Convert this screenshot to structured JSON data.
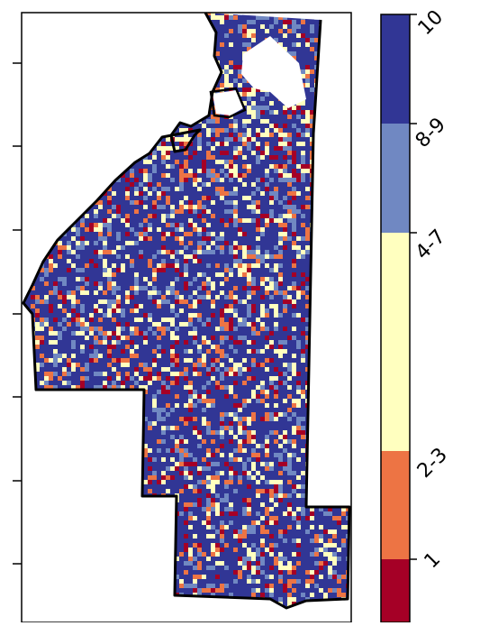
{
  "map": {
    "fill_cells": true
  },
  "legend": {
    "classes": [
      {
        "label": "10",
        "color": "#313695"
      },
      {
        "label": "8-9",
        "color": "#7088c2"
      },
      {
        "label": "4-7",
        "color": "#ffffbf"
      },
      {
        "label": "2-3",
        "color": "#ed7444"
      },
      {
        "label": "1",
        "color": "#a50026"
      }
    ]
  },
  "colors": {
    "outline": "#000000",
    "frame": "#000000",
    "background": "#ffffff"
  }
}
